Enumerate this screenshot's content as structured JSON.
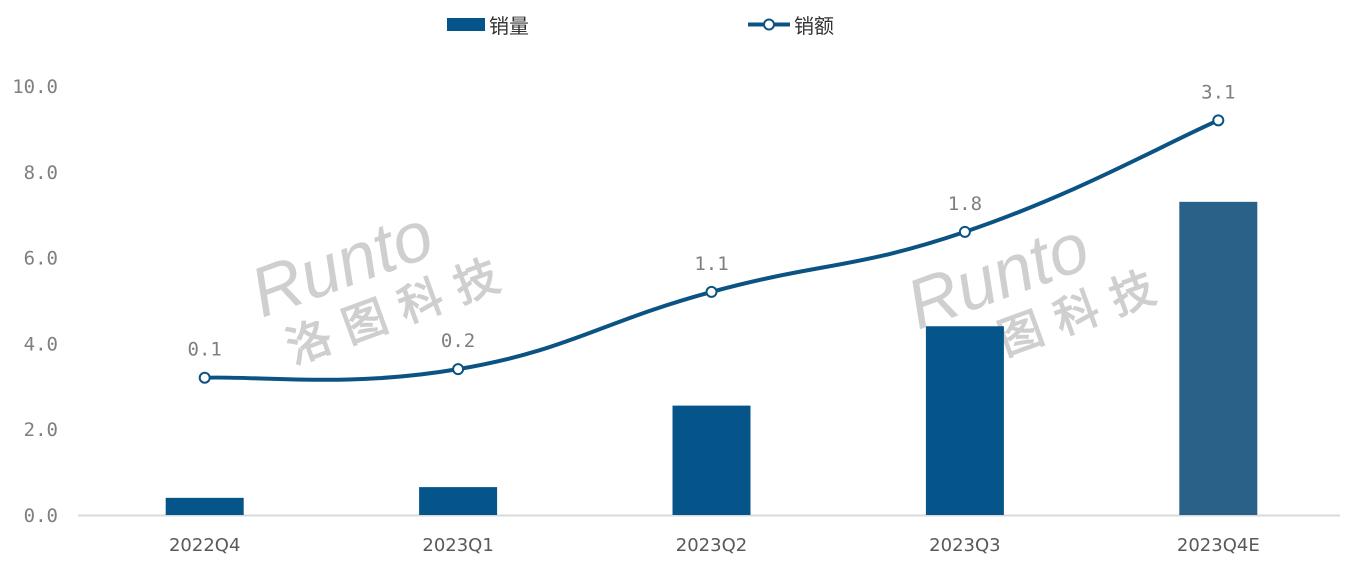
{
  "chart_data": {
    "type": "bar+line",
    "categories": [
      "2022Q4",
      "2023Q1",
      "2023Q2",
      "2023Q3",
      "2023Q4E"
    ],
    "series": [
      {
        "name": "销量",
        "type": "bar",
        "axis": "primary",
        "values": [
          0.4,
          0.65,
          2.55,
          4.4,
          7.3
        ],
        "colors": [
          "#06558a",
          "#06558a",
          "#06558a",
          "#06558a",
          "#2a6189"
        ]
      },
      {
        "name": "销额",
        "type": "line",
        "axis": "secondary",
        "values": [
          0.1,
          0.2,
          1.1,
          1.8,
          3.1
        ],
        "labels": [
          "0.1",
          "0.2",
          "1.1",
          "1.8",
          "3.1"
        ],
        "color": "#0b5383",
        "smooth": true,
        "marker": "hollow-circle"
      }
    ],
    "ylim": [
      0,
      10
    ],
    "yticks": [
      "0.0",
      "2.0",
      "4.0",
      "6.0",
      "8.0",
      "10.0"
    ],
    "y2lim": [
      -1.5,
      3.5
    ],
    "y2_visible": false,
    "grid": false,
    "legend": "top-center",
    "title": "",
    "xlabel": "",
    "ylabel": ""
  },
  "watermark": {
    "brand": "Runto",
    "cn": "洛 图 科 技"
  }
}
